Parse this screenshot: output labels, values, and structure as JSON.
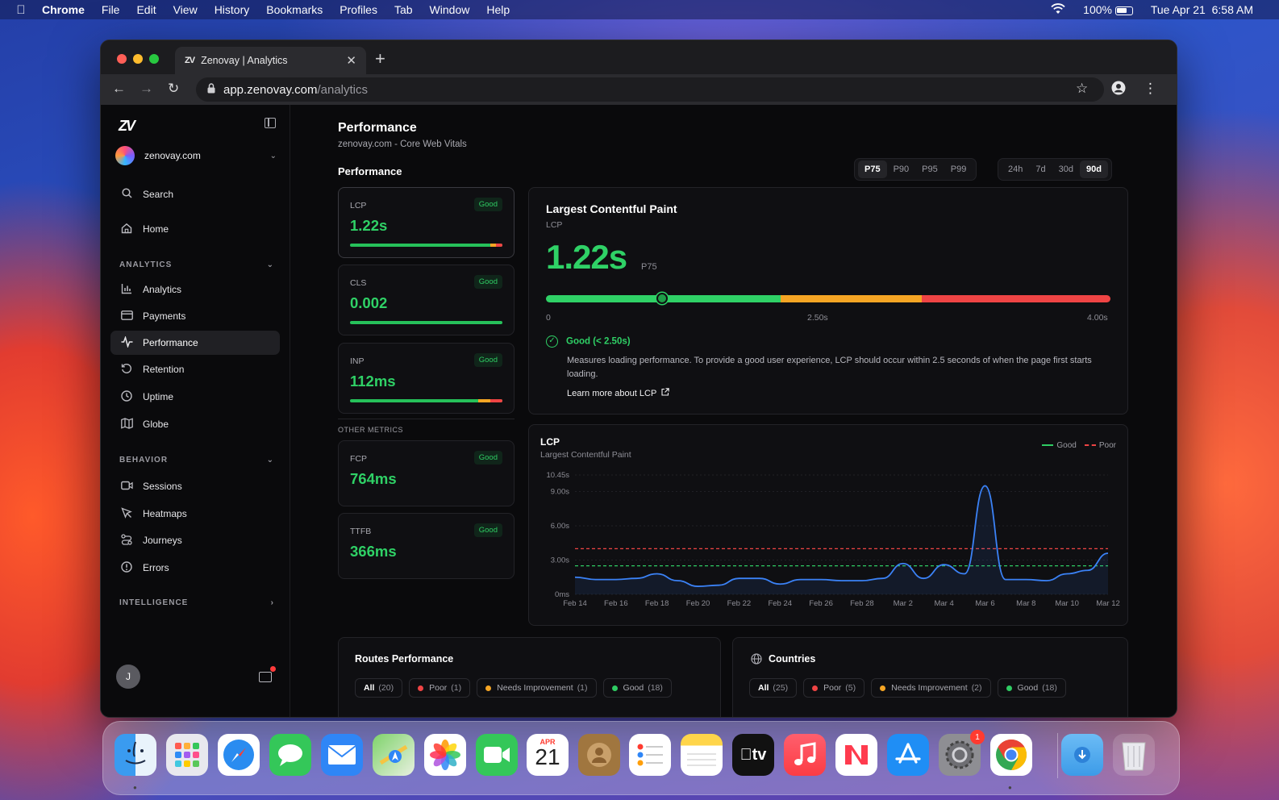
{
  "menubar": {
    "apple": "",
    "app_name": "Chrome",
    "items": [
      "File",
      "Edit",
      "View",
      "History",
      "Bookmarks",
      "Profiles",
      "Tab",
      "Window",
      "Help"
    ],
    "battery": "100%",
    "date": "Tue Apr 21",
    "time": "6:58 AM"
  },
  "browser": {
    "tab_title": "Zenovay | Analytics",
    "tab_favicon": "ZV",
    "url_host": "app.zenovay.com",
    "url_path": "/analytics"
  },
  "sidebar": {
    "logo": "ZV",
    "site": "zenovay.com",
    "search": "Search",
    "home": "Home",
    "sections": {
      "analytics": "ANALYTICS",
      "behavior": "BEHAVIOR",
      "intelligence": "INTELLIGENCE"
    },
    "analytics_items": [
      {
        "label": "Analytics",
        "icon": "bar-chart-icon"
      },
      {
        "label": "Payments",
        "icon": "credit-card-icon"
      },
      {
        "label": "Performance",
        "icon": "activity-icon"
      },
      {
        "label": "Retention",
        "icon": "refresh-icon"
      },
      {
        "label": "Uptime",
        "icon": "clock-icon"
      },
      {
        "label": "Globe",
        "icon": "map-icon"
      }
    ],
    "behavior_items": [
      {
        "label": "Sessions",
        "icon": "video-icon"
      },
      {
        "label": "Heatmaps",
        "icon": "cursor-icon"
      },
      {
        "label": "Journeys",
        "icon": "route-icon"
      },
      {
        "label": "Errors",
        "icon": "alert-circle-icon"
      }
    ],
    "user_initial": "J"
  },
  "main": {
    "title": "Performance",
    "subtitle": "zenovay.com - Core Web Vitals",
    "section_title": "Performance",
    "percentiles": [
      "P75",
      "P90",
      "P95",
      "P99"
    ],
    "percentile_selected": "P75",
    "ranges": [
      "24h",
      "7d",
      "30d",
      "90d"
    ],
    "range_selected": "90d",
    "metrics": [
      {
        "label": "LCP",
        "badge": "Good",
        "value": "1.22s"
      },
      {
        "label": "CLS",
        "badge": "Good",
        "value": "0.002"
      },
      {
        "label": "INP",
        "badge": "Good",
        "value": "112ms"
      }
    ],
    "other_metrics_label": "OTHER METRICS",
    "other_metrics": [
      {
        "label": "FCP",
        "badge": "Good",
        "value": "764ms"
      },
      {
        "label": "TTFB",
        "badge": "Good",
        "value": "366ms"
      }
    ],
    "detail": {
      "title": "Largest Contentful Paint",
      "abbr": "LCP",
      "value": "1.22s",
      "percentile": "P75",
      "scale": [
        "0",
        "2.50s",
        "4.00s"
      ],
      "value_fraction": 0.205,
      "good_fraction": 0.415,
      "ni_fraction": 0.665,
      "status": "Good (< 2.50s)",
      "description": "Measures loading performance. To provide a good user experience, LCP should occur within 2.5 seconds of when the page first starts loading.",
      "learn_more": "Learn more about LCP"
    },
    "routes": {
      "title": "Routes Performance",
      "filters": [
        {
          "label": "All",
          "count": "(20)"
        },
        {
          "label": "Poor",
          "count": "(1)"
        },
        {
          "label": "Needs Improvement",
          "count": "(1)"
        },
        {
          "label": "Good",
          "count": "(18)"
        }
      ]
    },
    "countries": {
      "title": "Countries",
      "filters": [
        {
          "label": "All",
          "count": "(25)"
        },
        {
          "label": "Poor",
          "count": "(5)"
        },
        {
          "label": "Needs Improvement",
          "count": "(2)"
        },
        {
          "label": "Good",
          "count": "(18)"
        }
      ]
    }
  },
  "colors": {
    "good": "#2fd166",
    "needs_improvement": "#f5a524",
    "poor": "#ef4444",
    "line": "#3b82f6"
  },
  "chart_data": {
    "type": "line",
    "title": "LCP",
    "subtitle": "Largest Contentful Paint",
    "legend": [
      "Good",
      "Poor"
    ],
    "legend_position": "top-right",
    "y_ticks": [
      "0ms",
      "3.00s",
      "6.00s",
      "9.00s",
      "10.45s"
    ],
    "ylim": [
      0,
      10.45
    ],
    "x_ticks": [
      "Feb 14",
      "Feb 16",
      "Feb 18",
      "Feb 20",
      "Feb 22",
      "Feb 24",
      "Feb 26",
      "Feb 28",
      "Mar 2",
      "Mar 4",
      "Mar 6",
      "Mar 8",
      "Mar 10",
      "Mar 12"
    ],
    "thresholds": {
      "good": 2.5,
      "poor": 4.0
    },
    "series": [
      {
        "values": [
          1.5,
          1.3,
          1.3,
          1.4,
          1.8,
          1.2,
          0.7,
          0.8,
          1.4,
          1.4,
          0.9,
          1.3,
          1.3,
          1.2,
          1.2,
          1.4,
          2.7,
          1.4,
          2.6,
          1.8,
          9.5,
          1.3,
          1.3,
          1.2,
          1.8,
          2.1,
          3.6
        ]
      }
    ]
  }
}
